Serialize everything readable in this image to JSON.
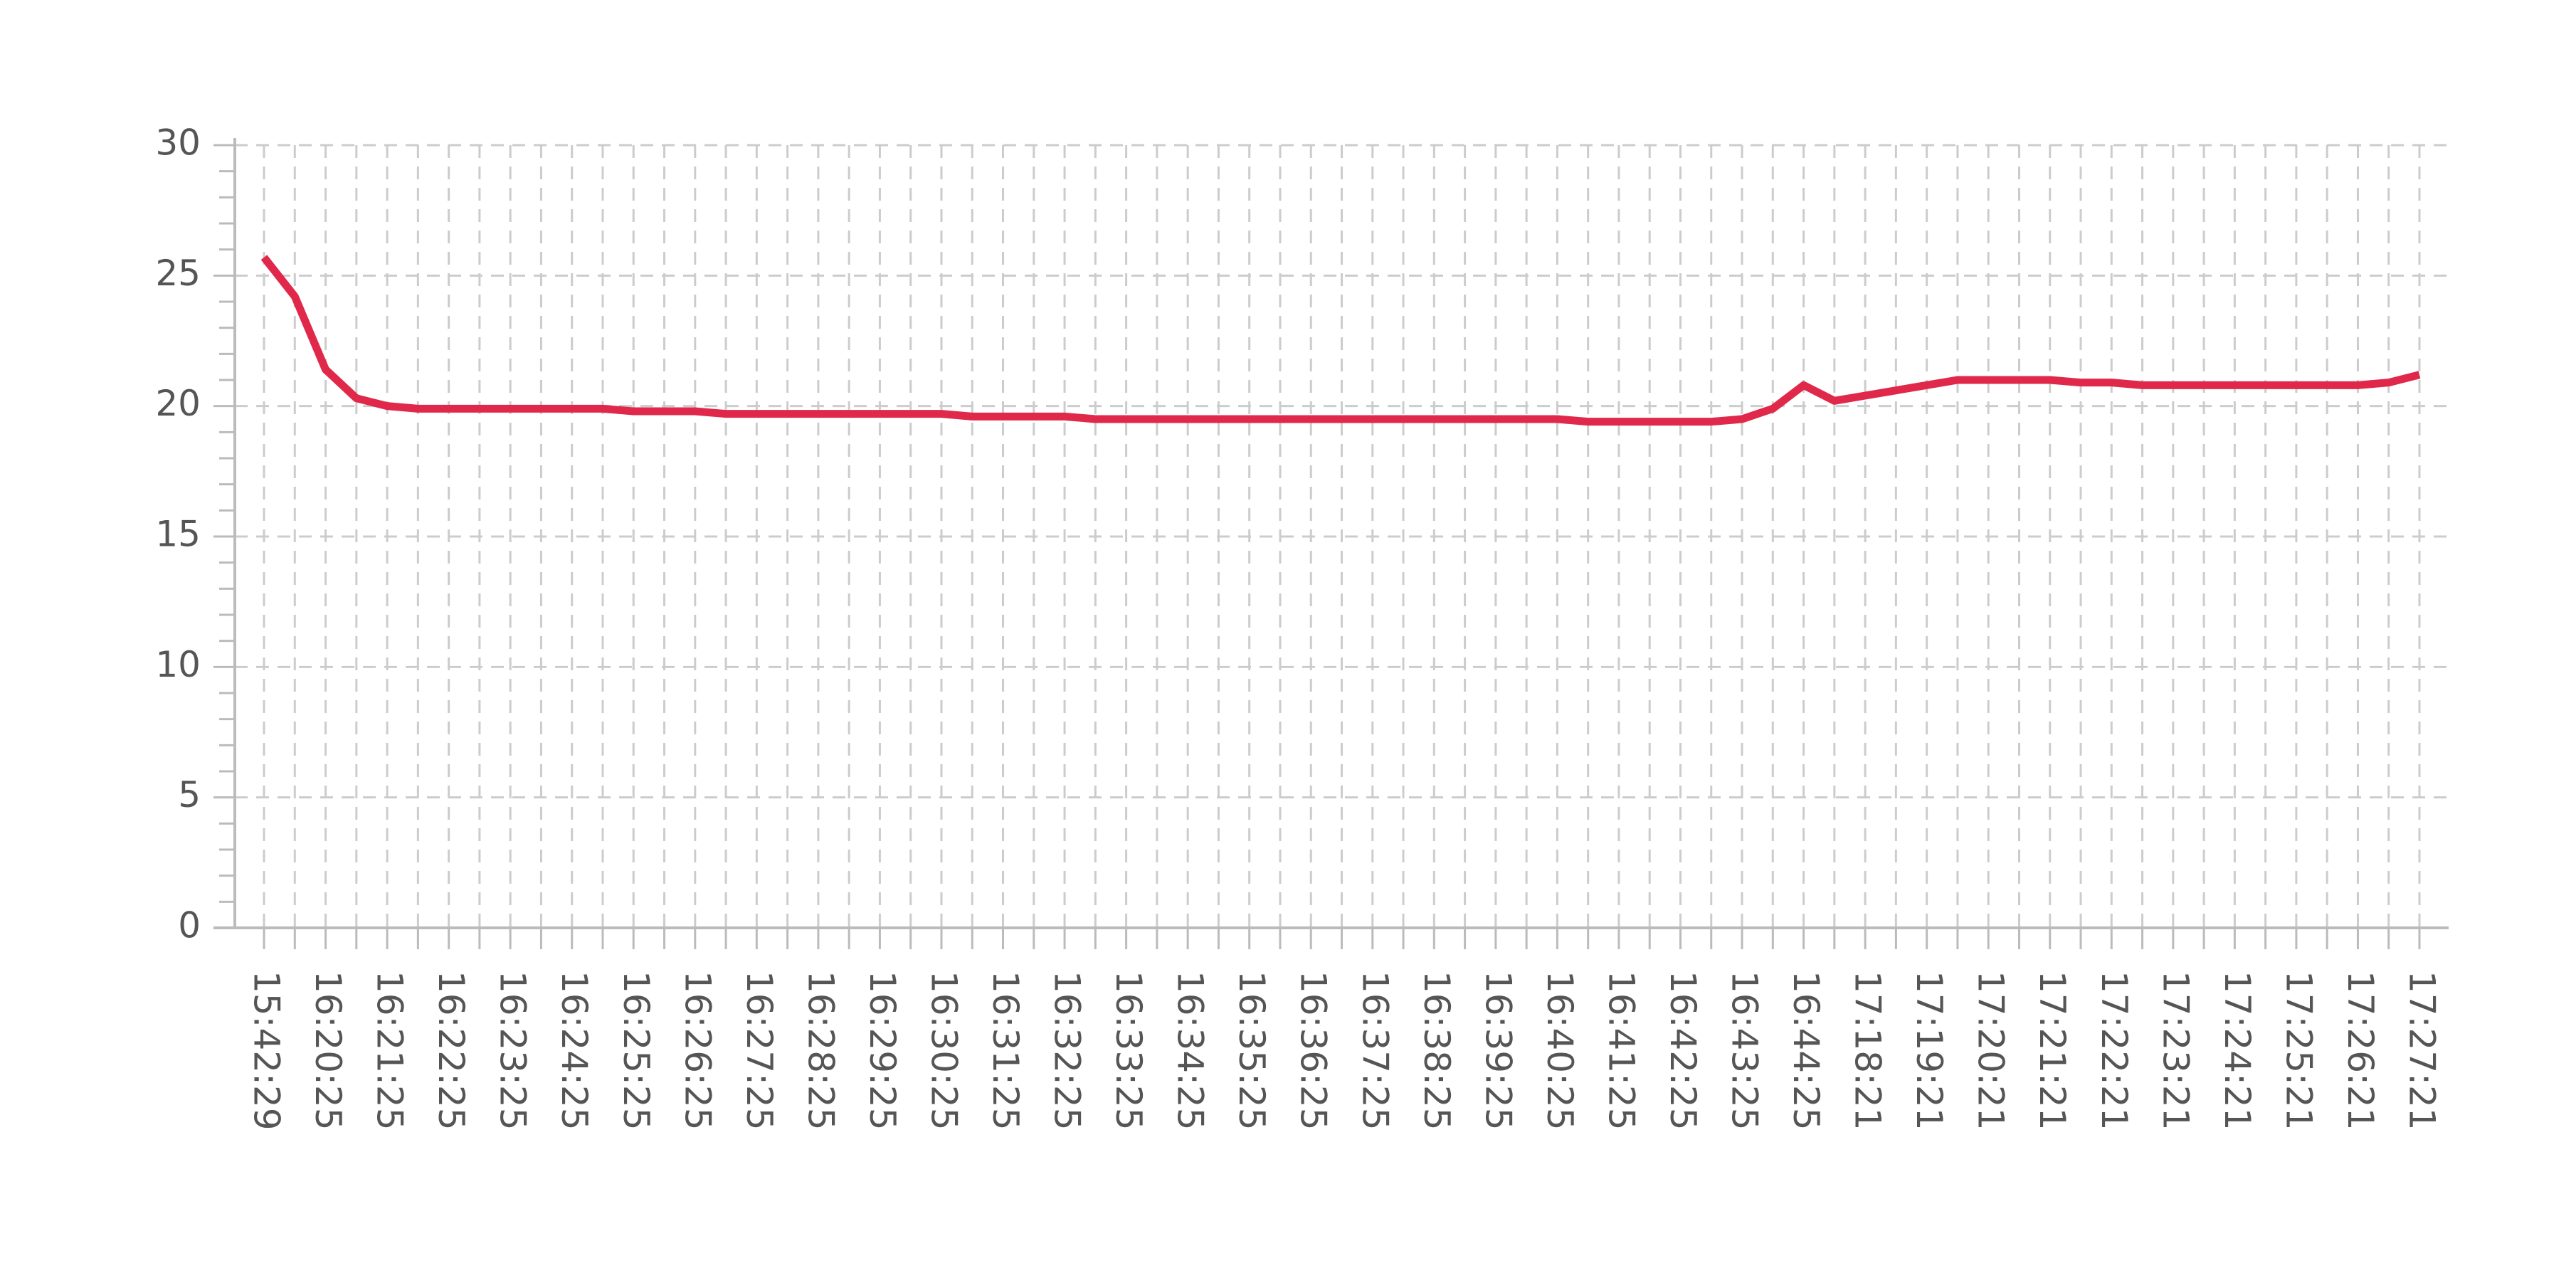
{
  "chart_data": {
    "type": "line",
    "categories": [
      "15:42:29",
      null,
      "16:20:25",
      null,
      "16:21:25",
      null,
      "16:22:25",
      null,
      "16:23:25",
      null,
      "16:24:25",
      null,
      "16:25:25",
      null,
      "16:26:25",
      null,
      "16:27:25",
      null,
      "16:28:25",
      null,
      "16:29:25",
      null,
      "16:30:25",
      null,
      "16:31:25",
      null,
      "16:32:25",
      null,
      "16:33:25",
      null,
      "16:34:25",
      null,
      "16:35:25",
      null,
      "16:36:25",
      null,
      "16:37:25",
      null,
      "16:38:25",
      null,
      "16:39:25",
      null,
      "16:40:25",
      null,
      "16:41:25",
      null,
      "16:42:25",
      null,
      "16:43:25",
      null,
      "16:44:25",
      null,
      "17:18:21",
      null,
      "17:19:21",
      null,
      "17:20:21",
      null,
      "17:21:21",
      null,
      "17:22:21",
      null,
      "17:23:21",
      null,
      "17:24:21",
      null,
      "17:25:21",
      null,
      "17:26:21",
      null,
      "17:27:21"
    ],
    "values": [
      25.7,
      24.2,
      21.4,
      20.3,
      20.0,
      19.9,
      19.9,
      19.9,
      19.9,
      19.9,
      19.9,
      19.9,
      19.8,
      19.8,
      19.8,
      19.7,
      19.7,
      19.7,
      19.7,
      19.7,
      19.7,
      19.7,
      19.7,
      19.6,
      19.6,
      19.6,
      19.6,
      19.5,
      19.5,
      19.5,
      19.5,
      19.5,
      19.5,
      19.5,
      19.5,
      19.5,
      19.5,
      19.5,
      19.5,
      19.5,
      19.5,
      19.5,
      19.5,
      19.4,
      19.4,
      19.4,
      19.4,
      19.4,
      19.5,
      19.9,
      20.8,
      20.2,
      20.4,
      20.6,
      20.8,
      21.0,
      21.0,
      21.0,
      21.0,
      20.9,
      20.9,
      20.8,
      20.8,
      20.8,
      20.8,
      20.8,
      20.8,
      20.8,
      20.8,
      20.9,
      21.2
    ],
    "color": "#e0294a",
    "ylim": [
      0,
      30
    ],
    "yticks": [
      0,
      5,
      10,
      15,
      20,
      25,
      30
    ],
    "grid": true
  }
}
